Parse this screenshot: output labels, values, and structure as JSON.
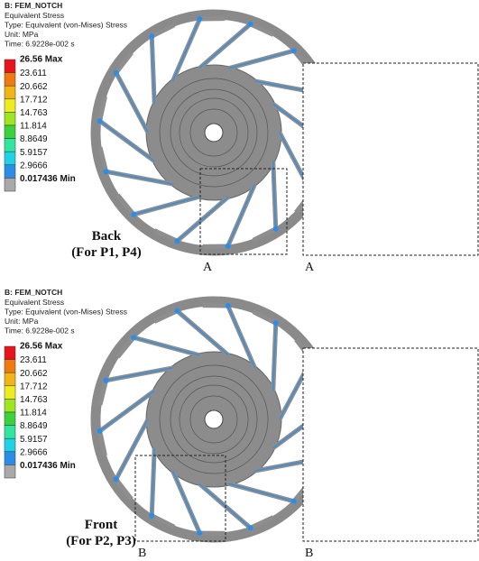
{
  "panels": [
    {
      "header": {
        "title": "B: FEM_NOTCH",
        "lines": [
          "Equivalent Stress",
          "Type: Equivalent (von-Mises) Stress",
          "Unit: MPa",
          "Time: 6.9228e-002 s"
        ]
      },
      "legend": {
        "labels": [
          "26.56 Max",
          "23.611",
          "20.662",
          "17.712",
          "14.763",
          "11.814",
          "8.8649",
          "5.9157",
          "2.9666",
          "0.017436 Min"
        ]
      },
      "caption": [
        "Back",
        "(For P1, P4)"
      ],
      "markers": [
        "A",
        "A"
      ]
    },
    {
      "header": {
        "title": "B: FEM_NOTCH",
        "lines": [
          "Equivalent Stress",
          "Type: Equivalent (von-Mises) Stress",
          "Unit: MPa",
          "Time: 6.9228e-002 s"
        ]
      },
      "legend": {
        "labels": [
          "26.56 Max",
          "23.611",
          "20.662",
          "17.712",
          "14.763",
          "11.814",
          "8.8649",
          "5.9157",
          "2.9666",
          "0.017436 Min"
        ]
      },
      "caption": [
        "Front",
        "(For P2, P3)"
      ],
      "markers": [
        "B",
        "B"
      ]
    }
  ]
}
